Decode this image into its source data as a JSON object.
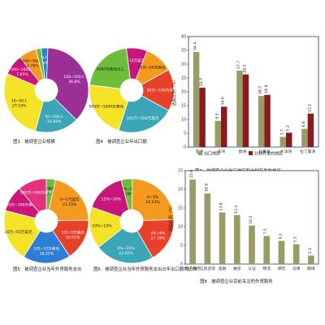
{
  "colors": {
    "red": "#e8412a",
    "magenta": "#c8167a",
    "purple": "#9b2f96",
    "blue": "#2d7fd5",
    "green": "#6cbd3a",
    "yellow": "#f4e326",
    "orange": "#f49a1e",
    "teal": "#3aa6b7",
    "pink": "#e5307e",
    "bar_olive": "#9a9c66",
    "bar_darkred": "#8b1a1f",
    "bar_border": "#1b3f7a",
    "plot_bg": "#ffffff"
  },
  "chart_data": [
    {
      "id": "fig3",
      "type": "pie",
      "title": "图3　被调查企业规模",
      "slices": [
        {
          "label": "5000人以上",
          "value_label": "2.59%",
          "value": 2.59,
          "color": "blue"
        },
        {
          "label": "100~500人",
          "value_label": "36.8%",
          "value": 36.8,
          "color": "purple"
        },
        {
          "label": "50~100人",
          "value_label": "16.81%",
          "value": 16.81,
          "color": "teal"
        },
        {
          "label": "10~50人",
          "value_label": "27.16%",
          "value": 27.16,
          "color": "yellow"
        },
        {
          "label": "500~1000人",
          "value_label": "7.85%",
          "value": 7.85,
          "color": "magenta"
        },
        {
          "label": "1000~5000人",
          "value_label": "6.79%",
          "value": 6.79,
          "color": "orange"
        },
        {
          "label": "",
          "value_label": "",
          "value": 2.0,
          "color": "green"
        }
      ]
    },
    {
      "id": "fig4",
      "type": "pie",
      "title": "图4　被调查企业年出口额",
      "slices": [
        {
          "label": "<10万美元",
          "value_label": "",
          "value": 8.0,
          "color": "magenta"
        },
        {
          "label": "10万~50万美元",
          "value_label": "",
          "value": 11.0,
          "color": "orange"
        },
        {
          "label": "50万~100万美元",
          "value_label": "",
          "value": 16.0,
          "color": "red"
        },
        {
          "label": "100万~500万美元",
          "value_label": "",
          "value": 22.0,
          "color": "teal"
        },
        {
          "label": "500万~1000万美元",
          "value_label": "",
          "value": 22.0,
          "color": "yellow"
        },
        {
          "label": "1000万美元以上",
          "value_label": "",
          "value": 21.0,
          "color": "green"
        }
      ]
    },
    {
      "id": "fig5",
      "type": "pie",
      "title": "图5　被调查企业当年外贸服务支出",
      "slices": [
        {
          "label": "500万美元以上",
          "value_label": "3.52%",
          "value": 3.52,
          "color": "green"
        },
        {
          "label": "0~1万美元",
          "value_label": "21.15%",
          "value": 21.15,
          "color": "orange"
        },
        {
          "label": "1万~5万美元",
          "value_label": "16.01%",
          "value": 16.01,
          "color": "red"
        },
        {
          "label": "5万~10万美元",
          "value_label": "18.25%",
          "value": 18.25,
          "color": "blue"
        },
        {
          "label": "10万~50万美元",
          "value_label": "",
          "value": 20.0,
          "color": "yellow"
        },
        {
          "label": "50万~100万美元",
          "value_label": "",
          "value": 10.0,
          "color": "magenta"
        },
        {
          "label": "100万~500万美元",
          "value_label": "",
          "value": 11.0,
          "color": "pink"
        }
      ]
    },
    {
      "id": "fig6",
      "type": "pie",
      "title": "图6　被调查企业当年外贸服务支出占年出口额的比例",
      "slices": [
        {
          "label": "<1%~20%",
          "value_label": "4.28%",
          "value": 4.28,
          "color": "green"
        },
        {
          "label": "0~3%",
          "value_label": "24.23%",
          "value": 24.23,
          "color": "orange"
        },
        {
          "label": "3%~6%",
          "value_label": "17.19%",
          "value": 17.19,
          "color": "red"
        },
        {
          "label": "6%~10%",
          "value_label": "22.62%",
          "value": 22.62,
          "color": "teal"
        },
        {
          "label": "10%~15%",
          "value_label": "",
          "value": 16.0,
          "color": "yellow"
        },
        {
          "label": "15%~20%",
          "value_label": "",
          "value": 15.68,
          "color": "magenta"
        }
      ]
    },
    {
      "id": "fig7",
      "type": "bar",
      "title": "图7　被调查企业出口地区和计划开发的地区",
      "ylabel": "选取比例（%）",
      "ylim": [
        0,
        40
      ],
      "yticks": [
        0,
        5,
        10,
        15,
        20,
        25,
        30,
        35,
        40
      ],
      "categories": [
        "亚洲",
        "非洲",
        "欧洲",
        "北美洲",
        "大洋洲",
        "拉丁美洲"
      ],
      "series": [
        {
          "name": "出口地区",
          "color": "bar_olive",
          "values": [
            34.4,
            9.5,
            27.7,
            18.5,
            3.7,
            6.6
          ]
        },
        {
          "name": "计划开发的地区",
          "color": "bar_darkred",
          "values": [
            21.5,
            14.6,
            26.3,
            18.9,
            5.2,
            12.1
          ]
        }
      ]
    },
    {
      "id": "fig8",
      "type": "bar",
      "title": "图8　被调查企业目前关注的外贸服务",
      "ylabel": "选取比例（%）",
      "ylim": [
        0,
        25
      ],
      "yticks": [
        0,
        5,
        10,
        15,
        20,
        25
      ],
      "categories": [
        "电子商务",
        "信息咨询",
        "金融",
        "展览",
        "认证",
        "物流",
        "保险",
        "法律",
        "翻译"
      ],
      "series": [
        {
          "name": "",
          "color": "bar_olive",
          "values": [
            22.6,
            18.9,
            13.8,
            13.1,
            10.3,
            7.5,
            6.2,
            5.3,
            2.3
          ]
        }
      ]
    }
  ]
}
